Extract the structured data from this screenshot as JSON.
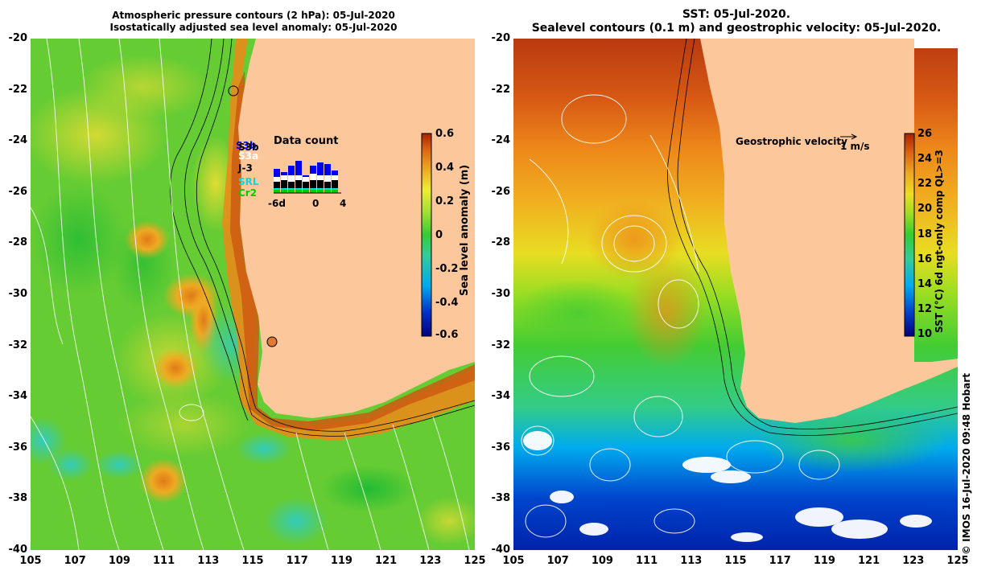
{
  "left_panel": {
    "title_line1": "Atmospheric pressure contours (2 hPa): 05-Jul-2020",
    "title_line2": "Isostatically adjusted sea level anomaly: 05-Jul-2020",
    "colorbar": {
      "label": "Sea level anomaly (m)",
      "ticks": [
        "0.6",
        "0.4",
        "0.2",
        "0",
        "-0.2",
        "-0.4",
        "-0.6"
      ],
      "colors": [
        "#00007a",
        "#0033cc",
        "#00aaee",
        "#33cc99",
        "#33cc33",
        "#99dd33",
        "#eeee33",
        "#eeaa22",
        "#dd6611",
        "#aa2200"
      ]
    },
    "data_count": {
      "title": "Data count",
      "legend": [
        "S3b",
        "S3b",
        "S3a",
        "J-3",
        "SRL",
        "Cr2"
      ],
      "legend_colors": [
        "#0000ee",
        "#000000",
        "#ffffff",
        "#000000",
        "#00dddd",
        "#00cc00"
      ],
      "x_ticks": [
        "-6d",
        "0",
        "4"
      ]
    }
  },
  "right_panel": {
    "title_line1": "SST: 05-Jul-2020.",
    "title_line2": "Sealevel contours (0.1 m) and geostrophic velocity: 05-Jul-2020.",
    "velocity_key": "Geostrophic velocity",
    "velocity_unit": "1 m/s",
    "colorbar": {
      "label": "SST (°C) 6d ngt-only comp QL>=3",
      "ticks": [
        "26",
        "24",
        "22",
        "20",
        "18",
        "16",
        "14",
        "12",
        "10"
      ],
      "colors": [
        "#00007a",
        "#0044cc",
        "#00aaee",
        "#33cc99",
        "#33cc33",
        "#99dd22",
        "#eedd22",
        "#eeaa22",
        "#dd6611",
        "#aa2200"
      ]
    }
  },
  "y_axis": [
    "-20",
    "-22",
    "-24",
    "-26",
    "-28",
    "-30",
    "-32",
    "-34",
    "-36",
    "-38",
    "-40"
  ],
  "x_axis": [
    "105",
    "107",
    "109",
    "111",
    "113",
    "115",
    "117",
    "119",
    "121",
    "123",
    "125"
  ],
  "land_color": "#fcc79a",
  "credit": "© IMOS 16-Jul-2020 09:48 Hobart"
}
